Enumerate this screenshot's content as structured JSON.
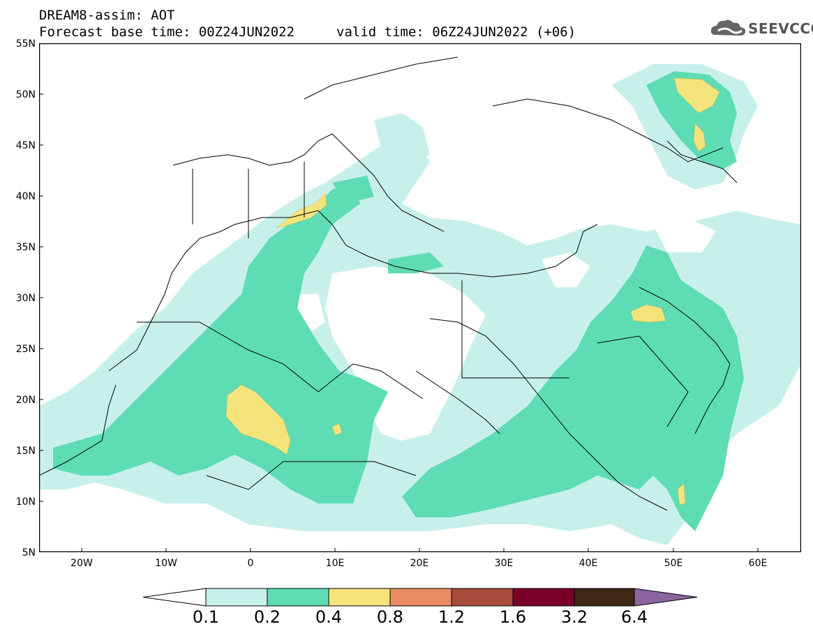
{
  "header": {
    "title": "DREAM8-assim: AOT",
    "base_time": "Forecast base time: 00Z24JUN2022",
    "valid_time": "valid time: 06Z24JUN2022 (+06)",
    "logo_text": "SEEVCCC"
  },
  "map": {
    "lat_labels": [
      "55N",
      "50N",
      "45N",
      "40N",
      "35N",
      "30N",
      "25N",
      "20N",
      "15N",
      "10N",
      "5N"
    ],
    "lon_labels": [
      "20W",
      "10W",
      "0",
      "10E",
      "20E",
      "30E",
      "40E",
      "50E",
      "60E"
    ],
    "extent": {
      "lon_min": -25,
      "lon_max": 65,
      "lat_min": 5,
      "lat_max": 55
    }
  },
  "colorbar": {
    "labels": [
      "0.1",
      "0.2",
      "0.4",
      "0.8",
      "1.2",
      "1.6",
      "3.2",
      "6.4"
    ],
    "colors": [
      "#ffffff",
      "#c8f0ea",
      "#5edcb4",
      "#f5e47c",
      "#eb8c64",
      "#a84b3c",
      "#7a0028",
      "#3c2814",
      "#8c64a0"
    ]
  },
  "colors": {
    "level_01": "#c8f0ea",
    "level_02": "#5edcb4",
    "level_04": "#f5e47c"
  }
}
